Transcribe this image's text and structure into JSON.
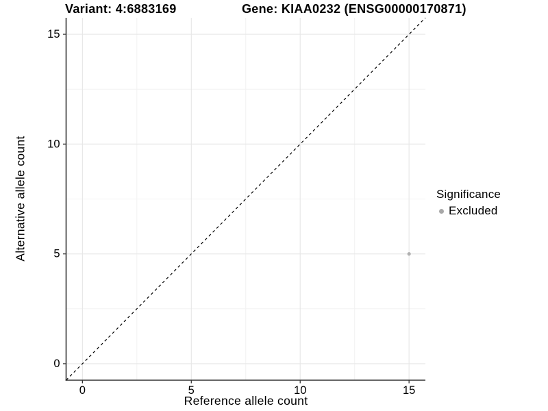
{
  "figure": {
    "titles": [
      "Variant: 4:6883169",
      "Gene: KIAA0232 (ENSG00000170871)"
    ]
  },
  "chart_data": {
    "type": "scatter",
    "title_left": "Variant: 4:6883169",
    "title_right": "Gene: KIAA0232 (ENSG00000170871)",
    "xlabel": "Reference allele count",
    "ylabel": "Alternative allele count",
    "xlim": [
      -0.75,
      15.75
    ],
    "ylim": [
      -0.75,
      15.75
    ],
    "x_ticks": [
      0,
      5,
      10,
      15
    ],
    "y_ticks": [
      0,
      5,
      10,
      15
    ],
    "minor_ticks": [
      2.5,
      7.5,
      12.5
    ],
    "grid": true,
    "points": [
      {
        "x": 15,
        "y": 5,
        "significance": "Excluded"
      }
    ],
    "reference_line": {
      "kind": "identity",
      "style": "dashed",
      "color": "#000000"
    },
    "legend": {
      "title": "Significance",
      "position": "right",
      "items": [
        {
          "label": "Excluded",
          "color": "#a8a8a8"
        }
      ]
    },
    "colors": {
      "point": "#b0b0b0",
      "grid_major": "#e6e6e6",
      "grid_minor": "#f2f2f2",
      "axis": "#333333",
      "text": "#000000"
    }
  }
}
